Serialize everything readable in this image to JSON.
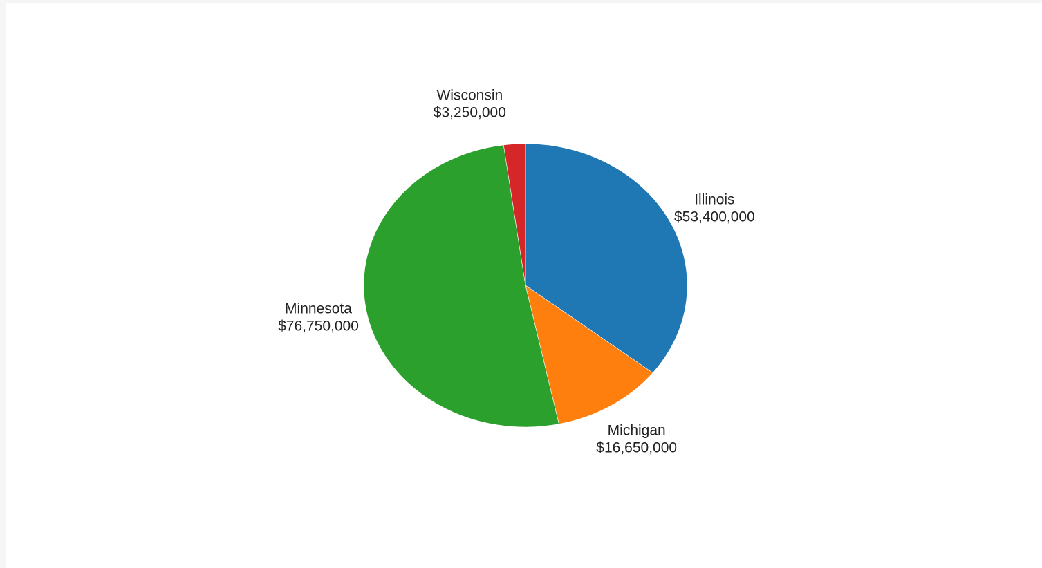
{
  "chart_data": {
    "type": "pie",
    "title": "",
    "categories": [
      "Illinois",
      "Michigan",
      "Minnesota",
      "Wisconsin"
    ],
    "values": [
      53400000,
      16650000,
      76750000,
      3250000
    ],
    "value_labels": [
      "$53,400,000",
      "$16,650,000",
      "$76,750,000",
      "$3,250,000"
    ],
    "colors": [
      "#1f77b4",
      "#ff7f0e",
      "#2ca02c",
      "#d62728"
    ],
    "start": "top",
    "direction": "clockwise",
    "legend": "none"
  }
}
